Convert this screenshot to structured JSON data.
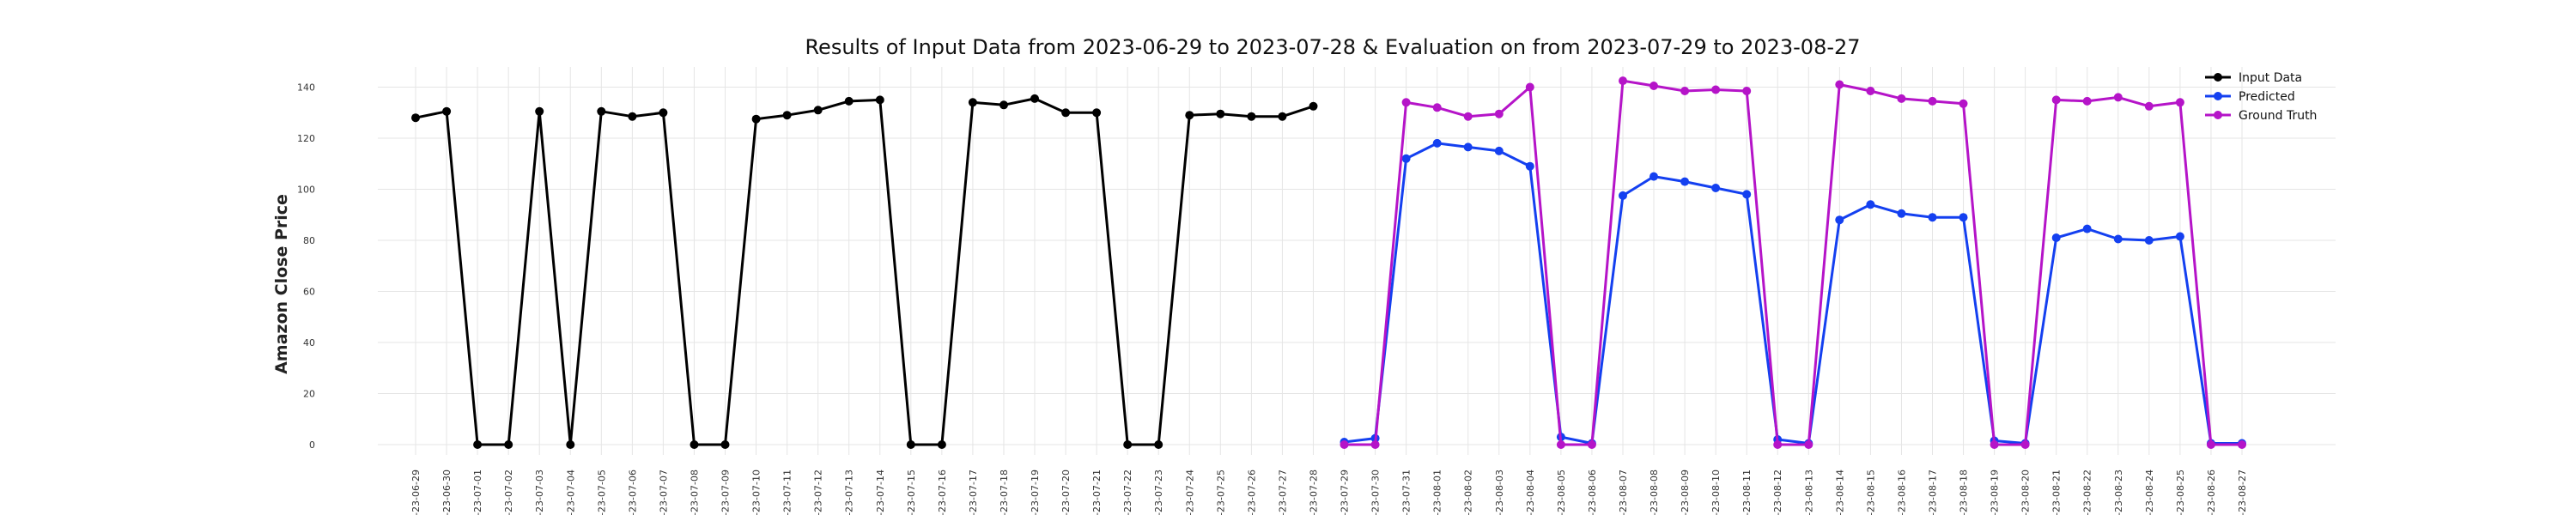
{
  "chart_data": {
    "type": "line",
    "title": "Results of Input Data from 2023-06-29 to 2023-07-28 & Evaluation on from 2023-07-29 to 2023-08-27",
    "xlabel": "",
    "ylabel": "Amazon Close Price",
    "ylim": [
      -8,
      150
    ],
    "yticks": [
      0,
      20,
      40,
      60,
      80,
      100,
      120,
      140
    ],
    "grid": true,
    "legend_position": "top-right",
    "x": [
      "2023-06-29",
      "2023-06-30",
      "2023-07-01",
      "2023-07-02",
      "2023-07-03",
      "2023-07-04",
      "2023-07-05",
      "2023-07-06",
      "2023-07-07",
      "2023-07-08",
      "2023-07-09",
      "2023-07-10",
      "2023-07-11",
      "2023-07-12",
      "2023-07-13",
      "2023-07-14",
      "2023-07-15",
      "2023-07-16",
      "2023-07-17",
      "2023-07-18",
      "2023-07-19",
      "2023-07-20",
      "2023-07-21",
      "2023-07-22",
      "2023-07-23",
      "2023-07-24",
      "2023-07-25",
      "2023-07-26",
      "2023-07-27",
      "2023-07-28",
      "2023-07-29",
      "2023-07-30",
      "2023-07-31",
      "2023-08-01",
      "2023-08-02",
      "2023-08-03",
      "2023-08-04",
      "2023-08-05",
      "2023-08-06",
      "2023-08-07",
      "2023-08-08",
      "2023-08-09",
      "2023-08-10",
      "2023-08-11",
      "2023-08-12",
      "2023-08-13",
      "2023-08-14",
      "2023-08-15",
      "2023-08-16",
      "2023-08-17",
      "2023-08-18",
      "2023-08-19",
      "2023-08-20",
      "2023-08-21",
      "2023-08-22",
      "2023-08-23",
      "2023-08-24",
      "2023-08-25",
      "2023-08-26",
      "2023-08-27"
    ],
    "xtick_labels": [
      "-23-06-29",
      "-23-06-30",
      "-23-07-01",
      "-23-07-02",
      "-23-07-03",
      "-23-07-04",
      "-23-07-05",
      "-23-07-06",
      "-23-07-07",
      "-23-07-08",
      "-23-07-09",
      "-23-07-10",
      "-23-07-11",
      "-23-07-12",
      "-23-07-13",
      "-23-07-14",
      "-23-07-15",
      "-23-07-16",
      "-23-07-17",
      "-23-07-18",
      "-23-07-19",
      "-23-07-20",
      "-23-07-21",
      "-23-07-22",
      "-23-07-23",
      "-23-07-24",
      "-23-07-25",
      "-23-07-26",
      "-23-07-27",
      "-23-07-28",
      "-23-07-29",
      "-23-07-30",
      "-23-07-31",
      "-23-08-01",
      "-23-08-02",
      "-23-08-03",
      "-23-08-04",
      "-23-08-05",
      "-23-08-06",
      "-23-08-07",
      "-23-08-08",
      "-23-08-09",
      "-23-08-10",
      "-23-08-11",
      "-23-08-12",
      "-23-08-13",
      "-23-08-14",
      "-23-08-15",
      "-23-08-16",
      "-23-08-17",
      "-23-08-18",
      "-23-08-19",
      "-23-08-20",
      "-23-08-21",
      "-23-08-22",
      "-23-08-23",
      "-23-08-24",
      "-23-08-25",
      "-23-08-26",
      "-23-08-27"
    ],
    "series": [
      {
        "name": "Input Data",
        "color": "#000000",
        "x": [
          "2023-06-29",
          "2023-06-30",
          "2023-07-01",
          "2023-07-02",
          "2023-07-03",
          "2023-07-04",
          "2023-07-05",
          "2023-07-06",
          "2023-07-07",
          "2023-07-08",
          "2023-07-09",
          "2023-07-10",
          "2023-07-11",
          "2023-07-12",
          "2023-07-13",
          "2023-07-14",
          "2023-07-15",
          "2023-07-16",
          "2023-07-17",
          "2023-07-18",
          "2023-07-19",
          "2023-07-20",
          "2023-07-21",
          "2023-07-22",
          "2023-07-23",
          "2023-07-24",
          "2023-07-25",
          "2023-07-26",
          "2023-07-27",
          "2023-07-28"
        ],
        "values": [
          128,
          130.5,
          0,
          0,
          130.5,
          0,
          130.5,
          128.5,
          130,
          0,
          0,
          127.5,
          129,
          131,
          134.5,
          135,
          0,
          0,
          134,
          133,
          135.5,
          130,
          130,
          0,
          0,
          129,
          129.5,
          128.5,
          128.5,
          132.5
        ]
      },
      {
        "name": "Predicted",
        "color": "#1440f0",
        "x": [
          "2023-07-29",
          "2023-07-30",
          "2023-07-31",
          "2023-08-01",
          "2023-08-02",
          "2023-08-03",
          "2023-08-04",
          "2023-08-05",
          "2023-08-06",
          "2023-08-07",
          "2023-08-08",
          "2023-08-09",
          "2023-08-10",
          "2023-08-11",
          "2023-08-12",
          "2023-08-13",
          "2023-08-14",
          "2023-08-15",
          "2023-08-16",
          "2023-08-17",
          "2023-08-18",
          "2023-08-19",
          "2023-08-20",
          "2023-08-21",
          "2023-08-22",
          "2023-08-23",
          "2023-08-24",
          "2023-08-25",
          "2023-08-26",
          "2023-08-27"
        ],
        "values": [
          1,
          2.5,
          112,
          118,
          116.5,
          115,
          109,
          3,
          0.5,
          97.5,
          105,
          103,
          100.5,
          98,
          2,
          0.5,
          88,
          94,
          90.5,
          89,
          89,
          1.5,
          0.5,
          81,
          84.5,
          80.5,
          80,
          81.5,
          0.5,
          0.5
        ]
      },
      {
        "name": "Ground Truth",
        "color": "#b514c8",
        "x": [
          "2023-07-29",
          "2023-07-30",
          "2023-07-31",
          "2023-08-01",
          "2023-08-02",
          "2023-08-03",
          "2023-08-04",
          "2023-08-05",
          "2023-08-06",
          "2023-08-07",
          "2023-08-08",
          "2023-08-09",
          "2023-08-10",
          "2023-08-11",
          "2023-08-12",
          "2023-08-13",
          "2023-08-14",
          "2023-08-15",
          "2023-08-16",
          "2023-08-17",
          "2023-08-18",
          "2023-08-19",
          "2023-08-20",
          "2023-08-21",
          "2023-08-22",
          "2023-08-23",
          "2023-08-24",
          "2023-08-25",
          "2023-08-26",
          "2023-08-27"
        ],
        "values": [
          0,
          0,
          134,
          132,
          128.5,
          129.5,
          140,
          0,
          0,
          142.5,
          140.5,
          138.5,
          139,
          138.5,
          0,
          0,
          141,
          138.5,
          135.5,
          134.5,
          133.5,
          0,
          0,
          135,
          134.5,
          136,
          132.5,
          134,
          0,
          0
        ]
      }
    ]
  }
}
